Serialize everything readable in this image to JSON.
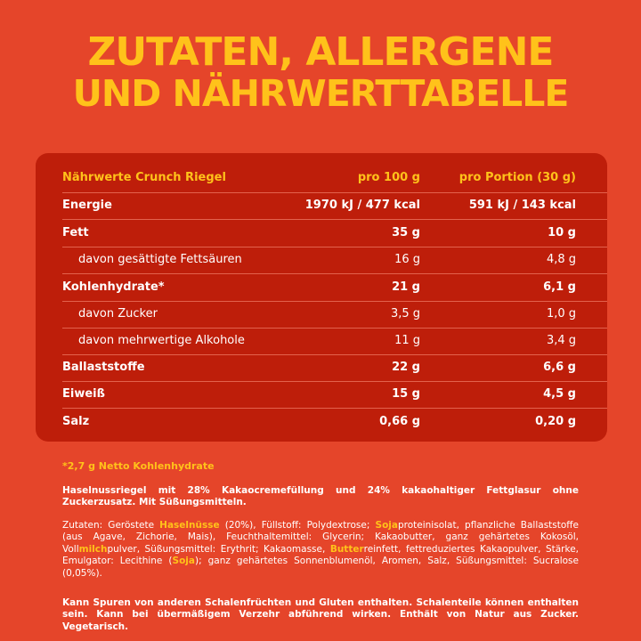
{
  "title": {
    "line1": "ZUTATEN, ALLERGENE",
    "line2": "UND NÄHRWERTTABELLE"
  },
  "table": {
    "headers": [
      "Nährwerte Crunch Riegel",
      "pro 100 g",
      "pro Portion (30 g)"
    ],
    "rows": [
      {
        "label": "Energie",
        "per100": "1970 kJ / 477 kcal",
        "portion": "591 kJ / 143 kcal"
      },
      {
        "label": "Fett",
        "per100": "35 g",
        "portion": "10 g"
      },
      {
        "label": "davon gesättigte Fettsäuren",
        "per100": "16 g",
        "portion": "4,8 g"
      },
      {
        "label": "Kohlenhydrate*",
        "per100": "21 g",
        "portion": "6,1 g"
      },
      {
        "label": "davon Zucker",
        "per100": "3,5 g",
        "portion": "1,0 g"
      },
      {
        "label": "davon mehrwertige Alkohole",
        "per100": "11 g",
        "portion": "3,4 g"
      },
      {
        "label": "Ballaststoffe",
        "per100": "22 g",
        "portion": "6,6 g"
      },
      {
        "label": "Eiweiß",
        "per100": "15 g",
        "portion": "4,5 g"
      },
      {
        "label": "Salz",
        "per100": "0,66 g",
        "portion": "0,20 g"
      }
    ]
  },
  "footnote": "*2,7 g Netto Kohlenhydrate",
  "description": "Haselnussriegel mit 28% Kakaocremefüllung und 24% kakaohaltiger Fettglasur ohne Zuckerzusatz. Mit Süßungsmitteln.",
  "ingredients": {
    "s1": "Zutaten: Geröstete ",
    "h1": "Haselnüsse",
    "s2": " (20%), Füllstoff: Polydextrose; ",
    "h2": "Soja",
    "s3": "proteinisolat, pflanzliche Ballaststoffe (aus Agave, Zichorie, Mais), Feuchthaltemittel: Glycerin; Kakaobutter, ganz gehärtetes Kokosöl, Voll",
    "h3": "milch",
    "s4": "pulver, Süßungsmittel: Erythrit; Kakaomasse, ",
    "h4": "Butter",
    "s5": "reinfett, fettreduziertes Kakaopulver, Stärke, Emulgator: Lecithine (",
    "h5": "Soja",
    "s6": "); ganz gehärtetes Sonnenblumenöl, Aromen, Salz, Süßungsmittel: Sucralose (0,05%)."
  },
  "warning": "Kann Spuren von anderen Schalenfrüchten und Gluten enthalten. Schalenteile können enthalten sein. Kann bei übermäßigem Verzehr abführend wirken. Enthält von Natur aus Zucker. Vegetarisch.",
  "colors": {
    "background": "#e5452a",
    "table": "#be1e0a",
    "accent": "#ffc21a"
  }
}
